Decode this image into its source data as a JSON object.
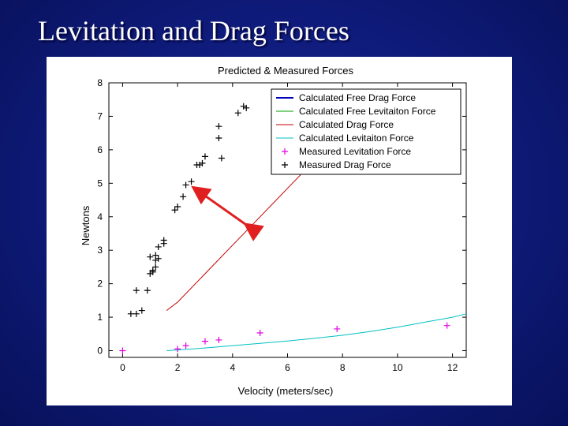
{
  "slide": {
    "title": "Levitation and Drag Forces"
  },
  "chart_data": {
    "type": "scatter",
    "title": "Predicted & Measured Forces",
    "xlabel": "Velocity (meters/sec)",
    "ylabel": "Newtons",
    "xlim": [
      -0.5,
      12.5
    ],
    "ylim": [
      -0.2,
      8
    ],
    "x_ticks": [
      0,
      2,
      4,
      6,
      8,
      10,
      12
    ],
    "y_ticks": [
      0,
      1,
      2,
      3,
      4,
      5,
      6,
      7,
      8
    ],
    "grid": false,
    "legend_position": "top-right",
    "series": [
      {
        "name": "Calculated Free Drag Force",
        "kind": "line",
        "color": "#0000bf",
        "x": [],
        "y": []
      },
      {
        "name": "Calculated Free Levitaiton Force",
        "kind": "line",
        "color": "#00a000",
        "x": [],
        "y": []
      },
      {
        "name": "Calculated Drag Force",
        "kind": "line",
        "color": "#c00000",
        "x": [
          1.6,
          2.0,
          3.0,
          4.0,
          5.0,
          6.0,
          7.0,
          7.8
        ],
        "y": [
          1.2,
          1.45,
          2.3,
          3.15,
          4.0,
          4.85,
          5.7,
          6.2
        ]
      },
      {
        "name": "Calculated Levitaiton Force",
        "kind": "line",
        "color": "#00c0c0",
        "x": [
          1.6,
          3,
          4,
          5,
          6,
          7,
          8,
          9,
          10,
          11,
          12,
          12.5
        ],
        "y": [
          0.0,
          0.08,
          0.15,
          0.22,
          0.29,
          0.37,
          0.46,
          0.57,
          0.7,
          0.85,
          1.0,
          1.1
        ]
      },
      {
        "name": "Measured Levitation Force",
        "kind": "marker",
        "color": "#e000e0",
        "x": [
          0.0,
          2.0,
          2.3,
          3.0,
          3.5,
          5.0,
          7.8,
          11.8
        ],
        "y": [
          0.0,
          0.05,
          0.15,
          0.28,
          0.32,
          0.53,
          0.65,
          0.75
        ]
      },
      {
        "name": "Measured Drag Force",
        "kind": "marker",
        "color": "#000000",
        "x": [
          0.3,
          0.5,
          0.5,
          0.7,
          0.9,
          1.0,
          1.0,
          1.1,
          1.1,
          1.2,
          1.2,
          1.2,
          1.3,
          1.3,
          1.5,
          1.5,
          1.9,
          2.0,
          2.2,
          2.3,
          2.5,
          2.7,
          2.8,
          2.9,
          3.0,
          3.5,
          3.5,
          3.6,
          4.2,
          4.4,
          4.5
        ],
        "y": [
          1.1,
          1.1,
          1.8,
          1.2,
          1.8,
          2.3,
          2.8,
          2.35,
          2.4,
          2.7,
          2.85,
          2.5,
          3.1,
          2.75,
          3.2,
          3.3,
          4.2,
          4.3,
          4.6,
          4.95,
          5.05,
          5.55,
          5.55,
          5.6,
          5.8,
          6.35,
          6.7,
          5.75,
          7.1,
          7.3,
          7.25
        ]
      }
    ],
    "annotation": {
      "type": "arrow",
      "color": "#e02020",
      "from": [
        4.6,
        3.7
      ],
      "to": [
        2.7,
        4.8
      ]
    }
  }
}
